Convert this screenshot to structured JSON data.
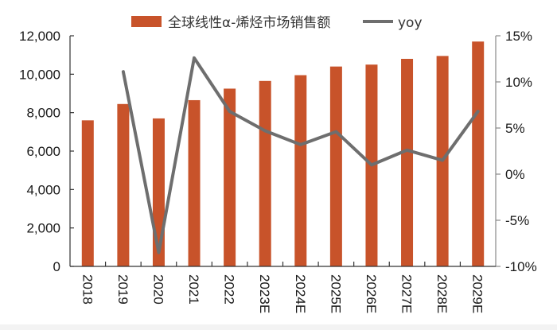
{
  "chart_data": {
    "type": "bar",
    "title": "",
    "xlabel": "",
    "ylabel": "",
    "categories": [
      "2018",
      "2019",
      "2020",
      "2021",
      "2022",
      "2023E",
      "2024E",
      "2025E",
      "2026E",
      "2027E",
      "2028E",
      "2029E"
    ],
    "series": [
      {
        "name": "全球线性α-烯烃市场销售额",
        "type": "bar",
        "axis": "left",
        "color": "#C8532A",
        "values": [
          7600,
          8450,
          7700,
          8650,
          9250,
          9650,
          9950,
          10400,
          10500,
          10800,
          10950,
          11700
        ]
      },
      {
        "name": "yoy",
        "type": "line",
        "axis": "right",
        "color": "#6E6E6E",
        "values": [
          null,
          11.1,
          -8.5,
          12.6,
          6.8,
          4.7,
          3.2,
          4.6,
          1.0,
          2.6,
          1.5,
          6.8
        ]
      }
    ],
    "left_axis": {
      "ylim": [
        0,
        12000
      ],
      "ticks": [
        0,
        2000,
        4000,
        6000,
        8000,
        10000,
        12000
      ],
      "tick_labels": [
        "0",
        "2,000",
        "4,000",
        "6,000",
        "8,000",
        "10,000",
        "12,000"
      ]
    },
    "right_axis": {
      "ylim": [
        -10,
        15
      ],
      "ticks": [
        -10,
        -5,
        0,
        5,
        10,
        15
      ],
      "tick_labels": [
        "-10%",
        "-5%",
        "0%",
        "5%",
        "10%",
        "15%"
      ]
    },
    "grid": false,
    "legend": {
      "position": "top",
      "entries": [
        "全球线性α-烯烃市场销售额",
        "yoy"
      ]
    },
    "x_tick_rotation": 90
  }
}
